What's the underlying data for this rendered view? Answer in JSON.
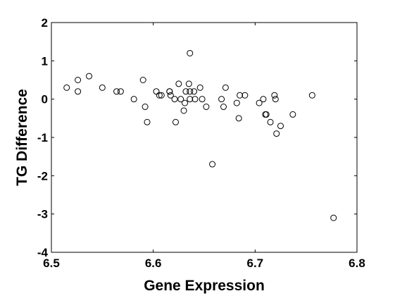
{
  "chart_data": {
    "type": "scatter",
    "title": "",
    "xlabel": "Gene Expression",
    "ylabel": "TG Difference",
    "xlim": [
      6.5,
      6.8
    ],
    "ylim": [
      -4,
      2
    ],
    "xticks": [
      "6.5",
      "6.6",
      "6.7",
      "6.8"
    ],
    "yticks": [
      "2",
      "1",
      "0",
      "-1",
      "-2",
      "-3",
      "-4"
    ],
    "grid": false,
    "legend": "none",
    "marker": "open-circle",
    "marker_color": "#000000",
    "points": [
      {
        "x": 6.515,
        "y": 0.3
      },
      {
        "x": 6.526,
        "y": 0.5
      },
      {
        "x": 6.526,
        "y": 0.2
      },
      {
        "x": 6.537,
        "y": 0.6
      },
      {
        "x": 6.55,
        "y": 0.3
      },
      {
        "x": 6.564,
        "y": 0.2
      },
      {
        "x": 6.568,
        "y": 0.2
      },
      {
        "x": 6.581,
        "y": 0.0
      },
      {
        "x": 6.59,
        "y": 0.5
      },
      {
        "x": 6.592,
        "y": -0.2
      },
      {
        "x": 6.594,
        "y": -0.6
      },
      {
        "x": 6.603,
        "y": 0.2
      },
      {
        "x": 6.606,
        "y": 0.1
      },
      {
        "x": 6.608,
        "y": 0.1
      },
      {
        "x": 6.616,
        "y": 0.2
      },
      {
        "x": 6.616,
        "y": 0.2
      },
      {
        "x": 6.617,
        "y": 0.1
      },
      {
        "x": 6.621,
        "y": 0.0
      },
      {
        "x": 6.622,
        "y": -0.6
      },
      {
        "x": 6.625,
        "y": 0.4
      },
      {
        "x": 6.627,
        "y": 0.0
      },
      {
        "x": 6.63,
        "y": -0.3
      },
      {
        "x": 6.631,
        "y": -0.1
      },
      {
        "x": 6.632,
        "y": 0.2
      },
      {
        "x": 6.635,
        "y": 0.4
      },
      {
        "x": 6.636,
        "y": 0.0
      },
      {
        "x": 6.636,
        "y": 0.2
      },
      {
        "x": 6.636,
        "y": 1.2
      },
      {
        "x": 6.64,
        "y": 0.2
      },
      {
        "x": 6.641,
        "y": 0.0
      },
      {
        "x": 6.646,
        "y": 0.3
      },
      {
        "x": 6.648,
        "y": 0.0
      },
      {
        "x": 6.652,
        "y": -0.2
      },
      {
        "x": 6.658,
        "y": -1.7
      },
      {
        "x": 6.667,
        "y": 0.0
      },
      {
        "x": 6.669,
        "y": -0.2
      },
      {
        "x": 6.671,
        "y": 0.3
      },
      {
        "x": 6.682,
        "y": -0.1
      },
      {
        "x": 6.684,
        "y": -0.5
      },
      {
        "x": 6.685,
        "y": 0.1
      },
      {
        "x": 6.69,
        "y": 0.1
      },
      {
        "x": 6.704,
        "y": -0.1
      },
      {
        "x": 6.708,
        "y": 0.0
      },
      {
        "x": 6.71,
        "y": -0.4
      },
      {
        "x": 6.711,
        "y": -0.4
      },
      {
        "x": 6.715,
        "y": -0.6
      },
      {
        "x": 6.719,
        "y": 0.1
      },
      {
        "x": 6.72,
        "y": 0.0
      },
      {
        "x": 6.721,
        "y": -0.9
      },
      {
        "x": 6.725,
        "y": -0.7
      },
      {
        "x": 6.737,
        "y": -0.4
      },
      {
        "x": 6.756,
        "y": 0.1
      },
      {
        "x": 6.777,
        "y": -3.1
      }
    ]
  }
}
